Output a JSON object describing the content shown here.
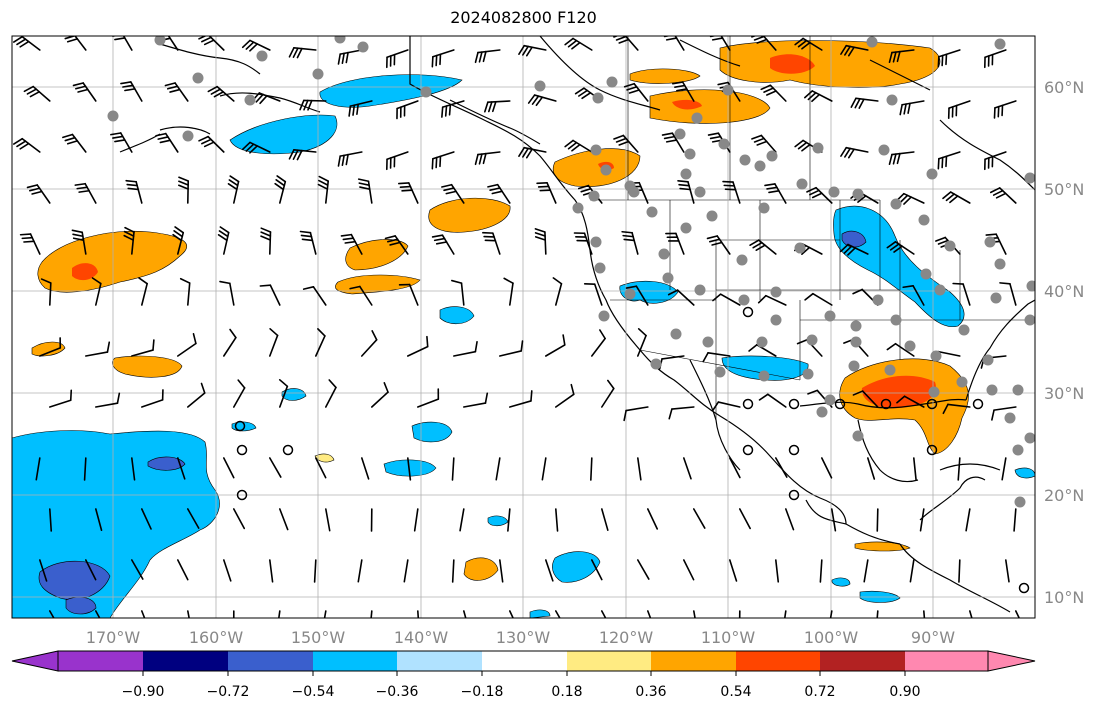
{
  "title": "2024082800 F120",
  "map": {
    "lon_range": [
      -180,
      -80
    ],
    "lat_range": [
      8,
      65
    ],
    "lon_labels": [
      "170°W",
      "160°W",
      "150°W",
      "140°W",
      "130°W",
      "120°W",
      "110°W",
      "100°W",
      "90°W"
    ],
    "lat_labels": [
      "60°N",
      "50°N",
      "40°N",
      "30°N",
      "20°N",
      "10°N"
    ],
    "grid": true
  },
  "colorbar": {
    "tick_labels": [
      "−0.90",
      "−0.72",
      "−0.54",
      "−0.36",
      "−0.18",
      "0.18",
      "0.36",
      "0.54",
      "0.72",
      "0.90"
    ],
    "colors": [
      "#9933cc",
      "#000080",
      "#3a5fcd",
      "#00bfff",
      "#b0e2ff",
      "#ffffff",
      "#ffeb82",
      "#ffa500",
      "#ff4500",
      "#b22222",
      "#ff88b0"
    ]
  }
}
